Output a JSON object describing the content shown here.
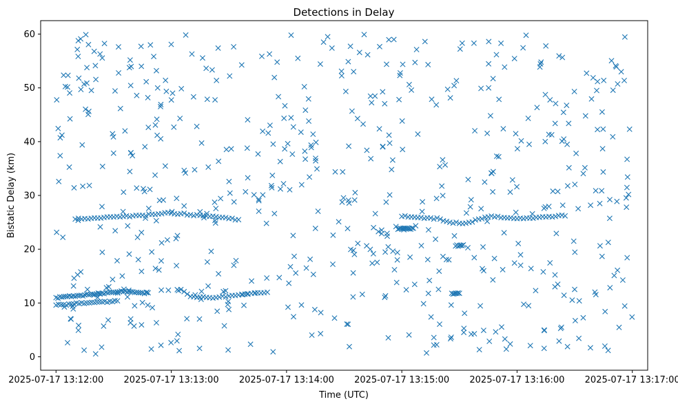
{
  "chart_data": {
    "type": "scatter",
    "title": "Detections in Delay",
    "xlabel": "Time (UTC)",
    "ylabel": "Bistatic Delay (km)",
    "xlim": [
      "2025-07-17 13:11:52",
      "2025-07-17 13:17:08"
    ],
    "ylim": [
      -2.5,
      62.5
    ],
    "x_ticks": [
      "2025-07-17 13:12:00",
      "2025-07-17 13:13:00",
      "2025-07-17 13:14:00",
      "2025-07-17 13:15:00",
      "2025-07-17 13:16:00",
      "2025-07-17 13:17:00"
    ],
    "y_ticks": [
      0,
      10,
      20,
      30,
      40,
      50,
      60
    ],
    "marker": "x",
    "color": "#1f77b4",
    "grid": false,
    "tracks": [
      {
        "x": [
          "2025-07-17 13:12:00",
          "2025-07-17 13:12:03",
          "2025-07-17 13:12:06",
          "2025-07-17 13:12:09",
          "2025-07-17 13:12:12",
          "2025-07-17 13:12:15",
          "2025-07-17 13:12:18",
          "2025-07-17 13:12:21",
          "2025-07-17 13:12:24",
          "2025-07-17 13:12:27",
          "2025-07-17 13:12:30",
          "2025-07-17 13:12:33",
          "2025-07-17 13:12:36",
          "2025-07-17 13:12:39",
          "2025-07-17 13:12:42",
          "2025-07-17 13:12:45",
          "2025-07-17 13:12:48"
        ],
        "y": [
          11.0,
          11.1,
          11.2,
          11.3,
          11.4,
          11.5,
          11.6,
          11.7,
          11.8,
          11.9,
          12.0,
          12.1,
          12.2,
          12.1,
          12.0,
          11.9,
          11.9
        ]
      },
      {
        "x": [
          "2025-07-17 13:12:00",
          "2025-07-17 13:12:04",
          "2025-07-17 13:12:08",
          "2025-07-17 13:12:12",
          "2025-07-17 13:12:16",
          "2025-07-17 13:12:20",
          "2025-07-17 13:12:24",
          "2025-07-17 13:12:28",
          "2025-07-17 13:12:32"
        ],
        "y": [
          9.6,
          9.7,
          9.8,
          9.9,
          10.0,
          10.1,
          10.2,
          10.3,
          10.4
        ]
      },
      {
        "x": [
          "2025-07-17 13:12:10",
          "2025-07-17 13:12:15",
          "2025-07-17 13:12:20",
          "2025-07-17 13:12:25",
          "2025-07-17 13:12:30",
          "2025-07-17 13:12:35",
          "2025-07-17 13:12:40",
          "2025-07-17 13:12:45",
          "2025-07-17 13:12:50",
          "2025-07-17 13:12:55",
          "2025-07-17 13:13:00",
          "2025-07-17 13:13:05",
          "2025-07-17 13:13:10",
          "2025-07-17 13:13:15",
          "2025-07-17 13:13:20",
          "2025-07-17 13:13:25",
          "2025-07-17 13:13:30",
          "2025-07-17 13:13:35"
        ],
        "y": [
          25.6,
          25.7,
          25.8,
          25.9,
          26.0,
          26.1,
          26.2,
          26.3,
          26.5,
          26.6,
          26.7,
          26.6,
          26.4,
          26.3,
          26.1,
          25.9,
          25.7,
          25.5
        ]
      },
      {
        "x": [
          "2025-07-17 13:13:05",
          "2025-07-17 13:13:10",
          "2025-07-17 13:13:15",
          "2025-07-17 13:13:20",
          "2025-07-17 13:13:25",
          "2025-07-17 13:13:30",
          "2025-07-17 13:13:35",
          "2025-07-17 13:13:40",
          "2025-07-17 13:13:45",
          "2025-07-17 13:13:50"
        ],
        "y": [
          12.5,
          11.2,
          11.1,
          11.0,
          11.1,
          11.3,
          11.5,
          11.7,
          11.9,
          12.0
        ]
      },
      {
        "x": [
          "2025-07-17 13:15:00",
          "2025-07-17 13:15:05",
          "2025-07-17 13:15:10",
          "2025-07-17 13:15:15",
          "2025-07-17 13:15:20",
          "2025-07-17 13:15:25",
          "2025-07-17 13:15:30",
          "2025-07-17 13:15:35",
          "2025-07-17 13:15:40",
          "2025-07-17 13:15:45",
          "2025-07-17 13:15:50",
          "2025-07-17 13:15:55",
          "2025-07-17 13:16:00",
          "2025-07-17 13:16:05",
          "2025-07-17 13:16:10",
          "2025-07-17 13:16:15",
          "2025-07-17 13:16:20",
          "2025-07-17 13:16:25"
        ],
        "y": [
          26.1,
          26.0,
          25.9,
          25.8,
          25.6,
          25.0,
          24.8,
          25.0,
          25.6,
          26.0,
          26.1,
          25.8,
          25.7,
          25.8,
          25.9,
          26.0,
          26.1,
          26.2
        ]
      },
      {
        "x": [
          "2025-07-17 13:14:58",
          "2025-07-17 13:15:00",
          "2025-07-17 13:15:02",
          "2025-07-17 13:15:04",
          "2025-07-17 13:15:06"
        ],
        "y": [
          23.7,
          23.8,
          23.9,
          23.8,
          23.9
        ]
      },
      {
        "x": [
          "2025-07-17 13:15:26",
          "2025-07-17 13:15:28",
          "2025-07-17 13:15:30"
        ],
        "y": [
          11.8,
          11.8,
          11.8
        ]
      },
      {
        "x": [
          "2025-07-17 13:15:28",
          "2025-07-17 13:15:30",
          "2025-07-17 13:15:32"
        ],
        "y": [
          20.6,
          20.7,
          20.8
        ]
      }
    ],
    "clutter": {
      "count": 620,
      "x_range": [
        "2025-07-17 13:12:00",
        "2025-07-17 13:17:00"
      ],
      "y_range": [
        0.5,
        60
      ]
    }
  }
}
